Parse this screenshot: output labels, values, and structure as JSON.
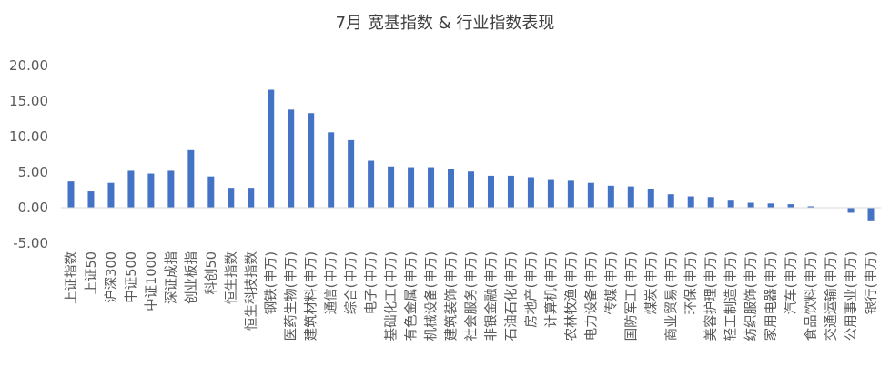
{
  "chart_data": {
    "type": "bar",
    "title": "7月 宽基指数 & 行业指数表现",
    "xlabel": "",
    "ylabel": "",
    "ylim": [
      -5,
      20
    ],
    "yticks": [
      "20.00",
      "15.00",
      "10.00",
      "5.00",
      "0.00",
      "-5.00"
    ],
    "ytick_values": [
      20,
      15,
      10,
      5,
      0,
      -5
    ],
    "grid": false,
    "legend": "none",
    "bar_color": "#4472C4",
    "categories": [
      "上证指数",
      "上证50",
      "沪深300",
      "中证500",
      "中证1000",
      "深证成指",
      "创业板指",
      "科创50",
      "恒生指数",
      "恒生科技指数",
      "钢铁(申万)",
      "医药生物(申万)",
      "建筑材料(申万)",
      "通信(申万)",
      "综合(申万)",
      "电子(申万)",
      "基础化工(申万)",
      "有色金属(申万)",
      "机械设备(申万)",
      "建筑装饰(申万)",
      "社会服务(申万)",
      "非银金融(申万)",
      "石油石化(申万)",
      "房地产(申万)",
      "计算机(申万)",
      "农林牧渔(申万)",
      "电力设备(申万)",
      "传媒(申万)",
      "国防军工(申万)",
      "煤炭(申万)",
      "商业贸易(申万)",
      "环保(申万)",
      "美容护理(申万)",
      "轻工制造(申万)",
      "纺织服饰(申万)",
      "家用电器(申万)",
      "汽车(申万)",
      "食品饮料(申万)",
      "交通运输(申万)",
      "公用事业(申万)",
      "银行(申万)"
    ],
    "values": [
      3.7,
      2.3,
      3.5,
      5.2,
      4.8,
      5.2,
      8.1,
      4.4,
      2.8,
      2.8,
      16.6,
      13.8,
      13.3,
      10.6,
      9.5,
      6.6,
      5.8,
      5.7,
      5.7,
      5.4,
      5.1,
      4.5,
      4.5,
      4.3,
      3.9,
      3.8,
      3.5,
      3.1,
      3.0,
      2.6,
      1.9,
      1.6,
      1.5,
      1.0,
      0.7,
      0.6,
      0.5,
      0.2,
      0.0,
      -0.7,
      -1.9
    ]
  }
}
